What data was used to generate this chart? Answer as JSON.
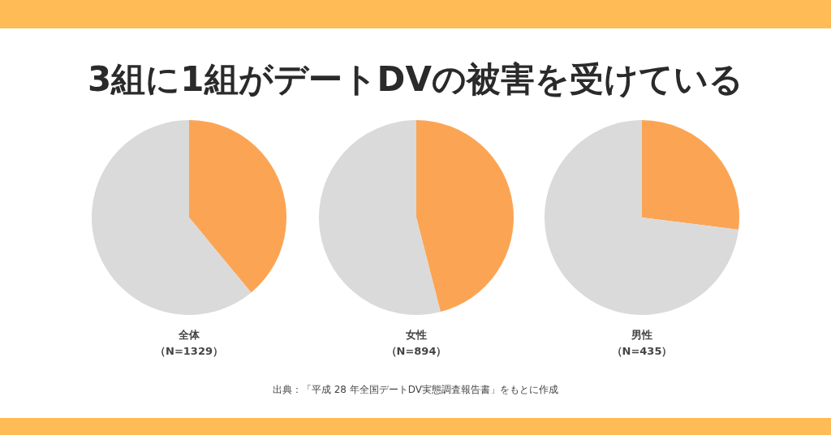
{
  "chart_data": [
    {
      "type": "pie",
      "title": "全体",
      "subtitle": "（N=1329）",
      "categories": [
        null,
        null
      ],
      "values": [
        39,
        61
      ],
      "colors": [
        "#fba554",
        "#dadada"
      ],
      "legend": false,
      "annotations": [
        "3組に1組がデートDVの被害を受けている"
      ]
    },
    {
      "type": "pie",
      "title": "女性",
      "subtitle": "（N=894）",
      "categories": [
        null,
        null
      ],
      "values": [
        46,
        54
      ],
      "colors": [
        "#fba554",
        "#dadada"
      ],
      "legend": false
    },
    {
      "type": "pie",
      "title": "男性",
      "subtitle": "（N=435）",
      "categories": [
        null,
        null
      ],
      "values": [
        27,
        73
      ],
      "colors": [
        "#fba554",
        "#dadada"
      ],
      "legend": false,
      "annotations": [
        "出典：「平成 28 年全国デートDV実態調査報告書」をもとに作成"
      ]
    }
  ]
}
